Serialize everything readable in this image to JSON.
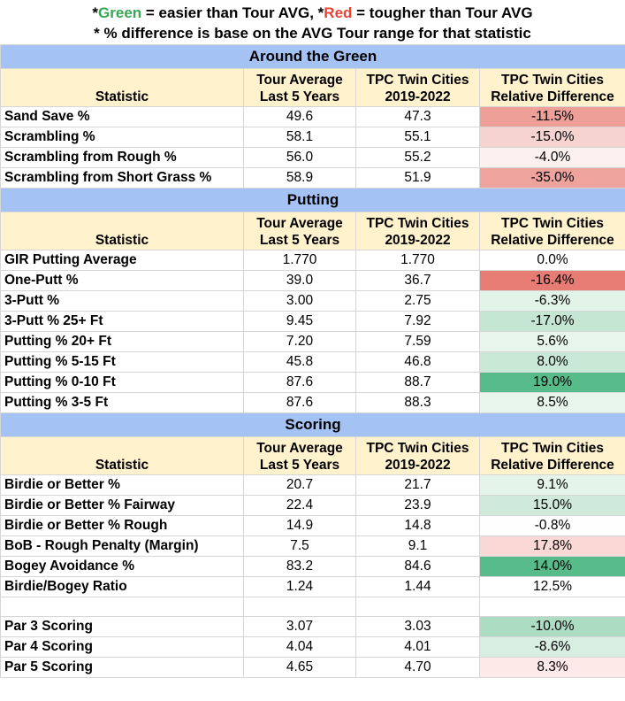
{
  "notes": {
    "line1_star": "*",
    "line1_green": "Green",
    "line1_mid": " = easier than Tour AVG, *",
    "line1_red": "Red",
    "line1_end": " = tougher than Tour AVG",
    "line2": "* % difference is base on the AVG Tour range for that statistic"
  },
  "headers": {
    "statistic": "Statistic",
    "tour_avg_1": "Tour Average",
    "tour_avg_2": "Last 5 Years",
    "tpc_1": "TPC Twin Cities",
    "tpc_2": "2019-2022",
    "rel_1": "TPC Twin Cities",
    "rel_2": "Relative Difference"
  },
  "colors": {
    "section_bg": "#a4c2f4",
    "header_bg": "#fff2cc",
    "green_strong": "#57bb8a",
    "green_light": "#c9e8d6",
    "red_strong": "#e67c73",
    "red_light": "#f9d6d3"
  },
  "sections": [
    {
      "title": "Around the Green",
      "rows": [
        {
          "stat": "Sand Save %",
          "tour": "49.6",
          "tpc": "47.3",
          "diff": "-11.5%",
          "bg": "#ee9f98"
        },
        {
          "stat": "Scrambling %",
          "tour": "58.1",
          "tpc": "55.1",
          "diff": "-15.0%",
          "bg": "#f7d3d0"
        },
        {
          "stat": "Scrambling from Rough %",
          "tour": "56.0",
          "tpc": "55.2",
          "diff": "-4.0%",
          "bg": "#fdf1f0"
        },
        {
          "stat": "Scrambling from Short Grass %",
          "tour": "58.9",
          "tpc": "51.9",
          "diff": "-35.0%",
          "bg": "#eea49d"
        }
      ]
    },
    {
      "title": "Putting",
      "rows": [
        {
          "stat": "GIR Putting Average",
          "tour": "1.770",
          "tpc": "1.770",
          "diff": "0.0%",
          "bg": "#ffffff"
        },
        {
          "stat": "One-Putt %",
          "tour": "39.0",
          "tpc": "36.7",
          "diff": "-16.4%",
          "bg": "#e67c73"
        },
        {
          "stat": "3-Putt %",
          "tour": "3.00",
          "tpc": "2.75",
          "diff": "-6.3%",
          "bg": "#e2f3e8"
        },
        {
          "stat": "3-Putt % 25+ Ft",
          "tour": "9.45",
          "tpc": "7.92",
          "diff": "-17.0%",
          "bg": "#c5e6d3"
        },
        {
          "stat": "Putting % 20+ Ft",
          "tour": "7.20",
          "tpc": "7.59",
          "diff": "5.6%",
          "bg": "#e8f5ed"
        },
        {
          "stat": "Putting % 5-15 Ft",
          "tour": "45.8",
          "tpc": "46.8",
          "diff": "8.0%",
          "bg": "#c9e8d6"
        },
        {
          "stat": "Putting % 0-10 Ft",
          "tour": "87.6",
          "tpc": "88.7",
          "diff": "19.0%",
          "bg": "#57bb8a"
        },
        {
          "stat": "Putting % 3-5 Ft",
          "tour": "87.6",
          "tpc": "88.3",
          "diff": "8.5%",
          "bg": "#e8f5ed"
        }
      ]
    },
    {
      "title": "Scoring",
      "rows": [
        {
          "stat": "Birdie or Better %",
          "tour": "20.7",
          "tpc": "21.7",
          "diff": "9.1%",
          "bg": "#e5f4ea"
        },
        {
          "stat": "Birdie or Better % Fairway",
          "tour": "22.4",
          "tpc": "23.9",
          "diff": "15.0%",
          "bg": "#cfeadb"
        },
        {
          "stat": "Birdie or Better % Rough",
          "tour": "14.9",
          "tpc": "14.8",
          "diff": "-0.8%",
          "bg": "#fdfefd"
        },
        {
          "stat": "BoB - Rough Penalty (Margin)",
          "tour": "7.5",
          "tpc": "9.1",
          "diff": "17.8%",
          "bg": "#f9d8d5"
        },
        {
          "stat": "Bogey Avoidance %",
          "tour": "83.2",
          "tpc": "84.6",
          "diff": "14.0%",
          "bg": "#57bb8a"
        },
        {
          "stat": "Birdie/Bogey Ratio",
          "tour": "1.24",
          "tpc": "1.44",
          "diff": "12.5%",
          "bg": "#ffffff"
        },
        {
          "stat": "",
          "tour": "",
          "tpc": "",
          "diff": "",
          "bg": "#ffffff",
          "blank": true
        },
        {
          "stat": "Par 3 Scoring",
          "tour": "3.07",
          "tpc": "3.03",
          "diff": "-10.0%",
          "bg": "#acdcc2"
        },
        {
          "stat": "Par 4 Scoring",
          "tour": "4.04",
          "tpc": "4.01",
          "diff": "-8.6%",
          "bg": "#d7eee1"
        },
        {
          "stat": "Par 5 Scoring",
          "tour": "4.65",
          "tpc": "4.70",
          "diff": "8.3%",
          "bg": "#fde9e7"
        }
      ]
    }
  ]
}
